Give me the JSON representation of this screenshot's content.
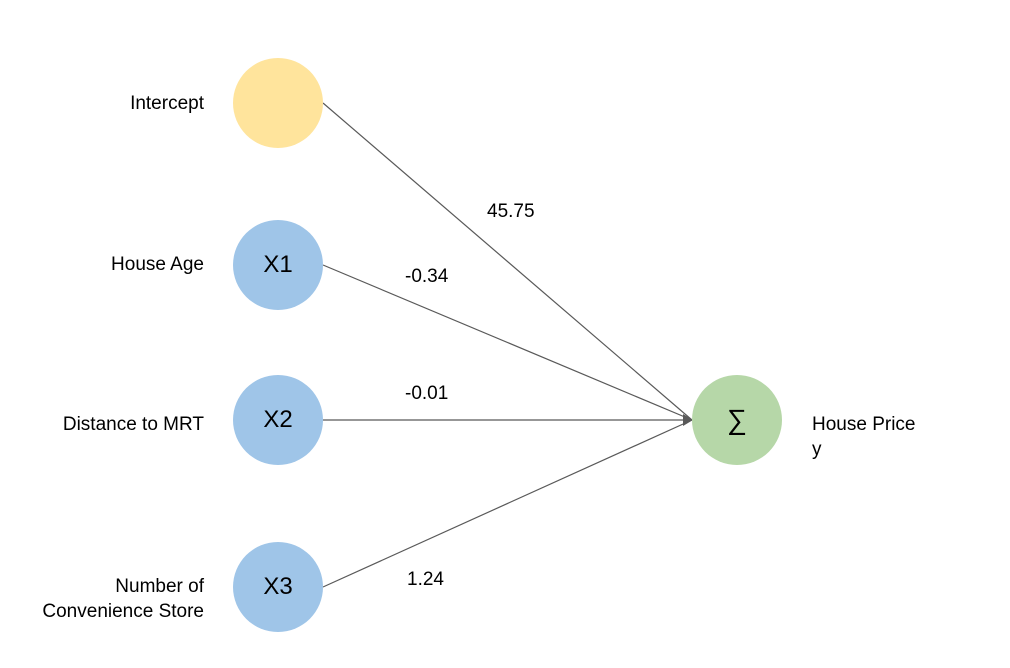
{
  "inputs": [
    {
      "name": "Intercept",
      "symbol": "",
      "weight": "45.75",
      "fill": "#ffe49c"
    },
    {
      "name": "House Age",
      "symbol": "X1",
      "weight": "-0.34",
      "fill": "#9fc5e8"
    },
    {
      "name": "Distance to MRT",
      "symbol": "X2",
      "weight": "-0.01",
      "fill": "#9fc5e8"
    },
    {
      "name_line1": "Number of",
      "name_line2": "Convenience Store",
      "symbol": "X3",
      "weight": "1.24",
      "fill": "#9fc5e8"
    }
  ],
  "output": {
    "symbol": "∑",
    "name_line1": "House Price",
    "name_line2": "y",
    "fill": "#b6d7a8"
  },
  "colors": {
    "edge": "#595959"
  }
}
